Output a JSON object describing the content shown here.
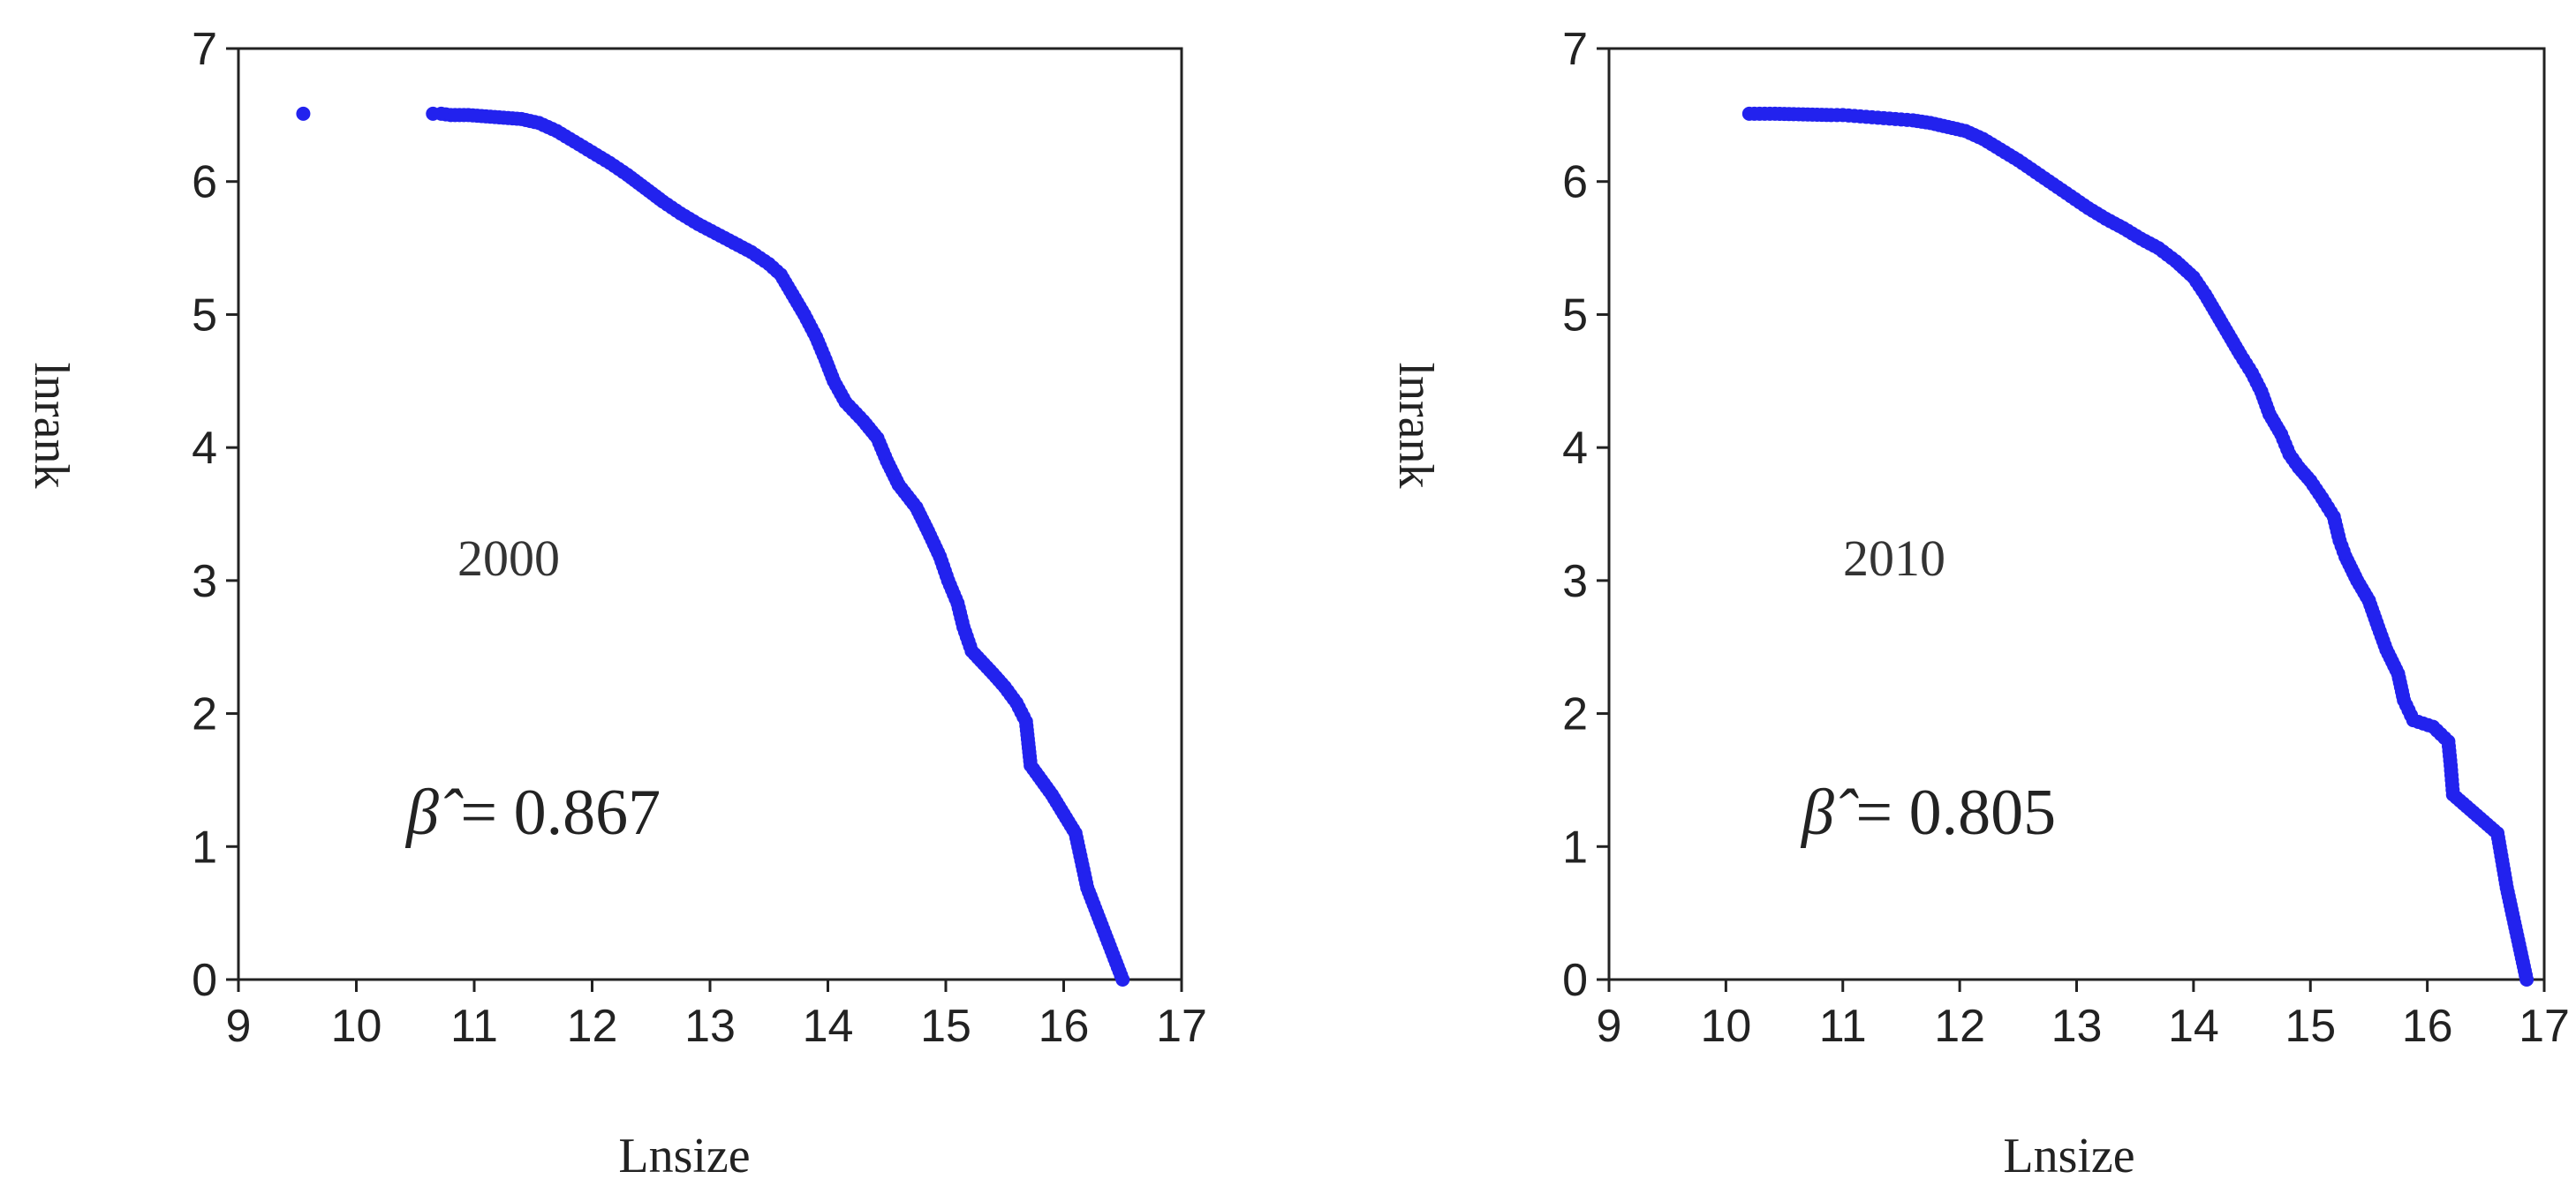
{
  "chart_data": [
    {
      "type": "scatter",
      "xlabel": "Lnsize",
      "ylabel": "lnrank",
      "xlim": [
        9,
        17
      ],
      "ylim": [
        0,
        7
      ],
      "xticks": [
        "9",
        "10",
        "11",
        "12",
        "13",
        "14",
        "15",
        "16",
        "17"
      ],
      "yticks": [
        "0",
        "1",
        "2",
        "3",
        "4",
        "5",
        "6",
        "7"
      ],
      "annotation_year": "2000",
      "beta_symbol": "β̂",
      "beta_equals": "= 0.867",
      "point_color": "#2222ee",
      "grid": false,
      "points": [
        [
          9.55,
          6.51
        ],
        [
          10.65,
          6.51
        ],
        [
          10.72,
          6.51
        ],
        [
          10.8,
          6.5
        ],
        [
          10.95,
          6.5
        ],
        [
          11.1,
          6.49
        ],
        [
          11.25,
          6.48
        ],
        [
          11.4,
          6.47
        ],
        [
          11.55,
          6.44
        ],
        [
          11.7,
          6.38
        ],
        [
          11.85,
          6.3
        ],
        [
          12.0,
          6.22
        ],
        [
          12.15,
          6.14
        ],
        [
          12.3,
          6.05
        ],
        [
          12.45,
          5.95
        ],
        [
          12.6,
          5.85
        ],
        [
          12.75,
          5.76
        ],
        [
          12.9,
          5.68
        ],
        [
          13.05,
          5.61
        ],
        [
          13.2,
          5.54
        ],
        [
          13.35,
          5.47
        ],
        [
          13.5,
          5.38
        ],
        [
          13.6,
          5.3
        ],
        [
          13.7,
          5.15
        ],
        [
          13.8,
          5.0
        ],
        [
          13.9,
          4.83
        ],
        [
          13.98,
          4.66
        ],
        [
          14.05,
          4.5
        ],
        [
          14.15,
          4.34
        ],
        [
          14.3,
          4.2
        ],
        [
          14.42,
          4.07
        ],
        [
          14.5,
          3.9
        ],
        [
          14.6,
          3.72
        ],
        [
          14.75,
          3.55
        ],
        [
          14.85,
          3.37
        ],
        [
          14.95,
          3.18
        ],
        [
          15.02,
          3.0
        ],
        [
          15.1,
          2.83
        ],
        [
          15.15,
          2.65
        ],
        [
          15.22,
          2.47
        ],
        [
          15.4,
          2.3
        ],
        [
          15.5,
          2.2
        ],
        [
          15.6,
          2.08
        ],
        [
          15.68,
          1.94
        ],
        [
          15.72,
          1.61
        ],
        [
          15.9,
          1.39
        ],
        [
          16.1,
          1.1
        ],
        [
          16.2,
          0.69
        ],
        [
          16.5,
          0.0
        ]
      ]
    },
    {
      "type": "scatter",
      "xlabel": "Lnsize",
      "ylabel": "lnrank",
      "xlim": [
        9,
        17
      ],
      "ylim": [
        0,
        7
      ],
      "xticks": [
        "9",
        "10",
        "11",
        "12",
        "13",
        "14",
        "15",
        "16",
        "17"
      ],
      "yticks": [
        "0",
        "1",
        "2",
        "3",
        "4",
        "5",
        "6",
        "7"
      ],
      "annotation_year": "2010",
      "beta_symbol": "β̂",
      "beta_equals": "= 0.805",
      "point_color": "#2222ee",
      "grid": false,
      "points": [
        [
          10.2,
          6.51
        ],
        [
          10.42,
          6.51
        ],
        [
          10.9,
          6.5
        ],
        [
          11.0,
          6.5
        ],
        [
          11.15,
          6.49
        ],
        [
          11.3,
          6.48
        ],
        [
          11.45,
          6.47
        ],
        [
          11.6,
          6.46
        ],
        [
          11.75,
          6.44
        ],
        [
          11.9,
          6.41
        ],
        [
          12.05,
          6.38
        ],
        [
          12.2,
          6.32
        ],
        [
          12.35,
          6.24
        ],
        [
          12.5,
          6.16
        ],
        [
          12.65,
          6.07
        ],
        [
          12.8,
          5.98
        ],
        [
          12.95,
          5.89
        ],
        [
          13.1,
          5.8
        ],
        [
          13.25,
          5.72
        ],
        [
          13.4,
          5.65
        ],
        [
          13.55,
          5.57
        ],
        [
          13.7,
          5.5
        ],
        [
          13.85,
          5.4
        ],
        [
          14.0,
          5.28
        ],
        [
          14.1,
          5.15
        ],
        [
          14.2,
          5.0
        ],
        [
          14.3,
          4.85
        ],
        [
          14.4,
          4.7
        ],
        [
          14.5,
          4.56
        ],
        [
          14.58,
          4.42
        ],
        [
          14.65,
          4.25
        ],
        [
          14.75,
          4.1
        ],
        [
          14.82,
          3.95
        ],
        [
          14.9,
          3.85
        ],
        [
          15.0,
          3.75
        ],
        [
          15.1,
          3.62
        ],
        [
          15.2,
          3.48
        ],
        [
          15.25,
          3.3
        ],
        [
          15.3,
          3.18
        ],
        [
          15.4,
          3.0
        ],
        [
          15.5,
          2.85
        ],
        [
          15.58,
          2.65
        ],
        [
          15.65,
          2.48
        ],
        [
          15.75,
          2.3
        ],
        [
          15.8,
          2.1
        ],
        [
          15.88,
          1.95
        ],
        [
          16.05,
          1.9
        ],
        [
          16.18,
          1.79
        ],
        [
          16.2,
          1.61
        ],
        [
          16.22,
          1.39
        ],
        [
          16.6,
          1.1
        ],
        [
          16.68,
          0.69
        ],
        [
          16.85,
          0.0
        ]
      ]
    }
  ]
}
